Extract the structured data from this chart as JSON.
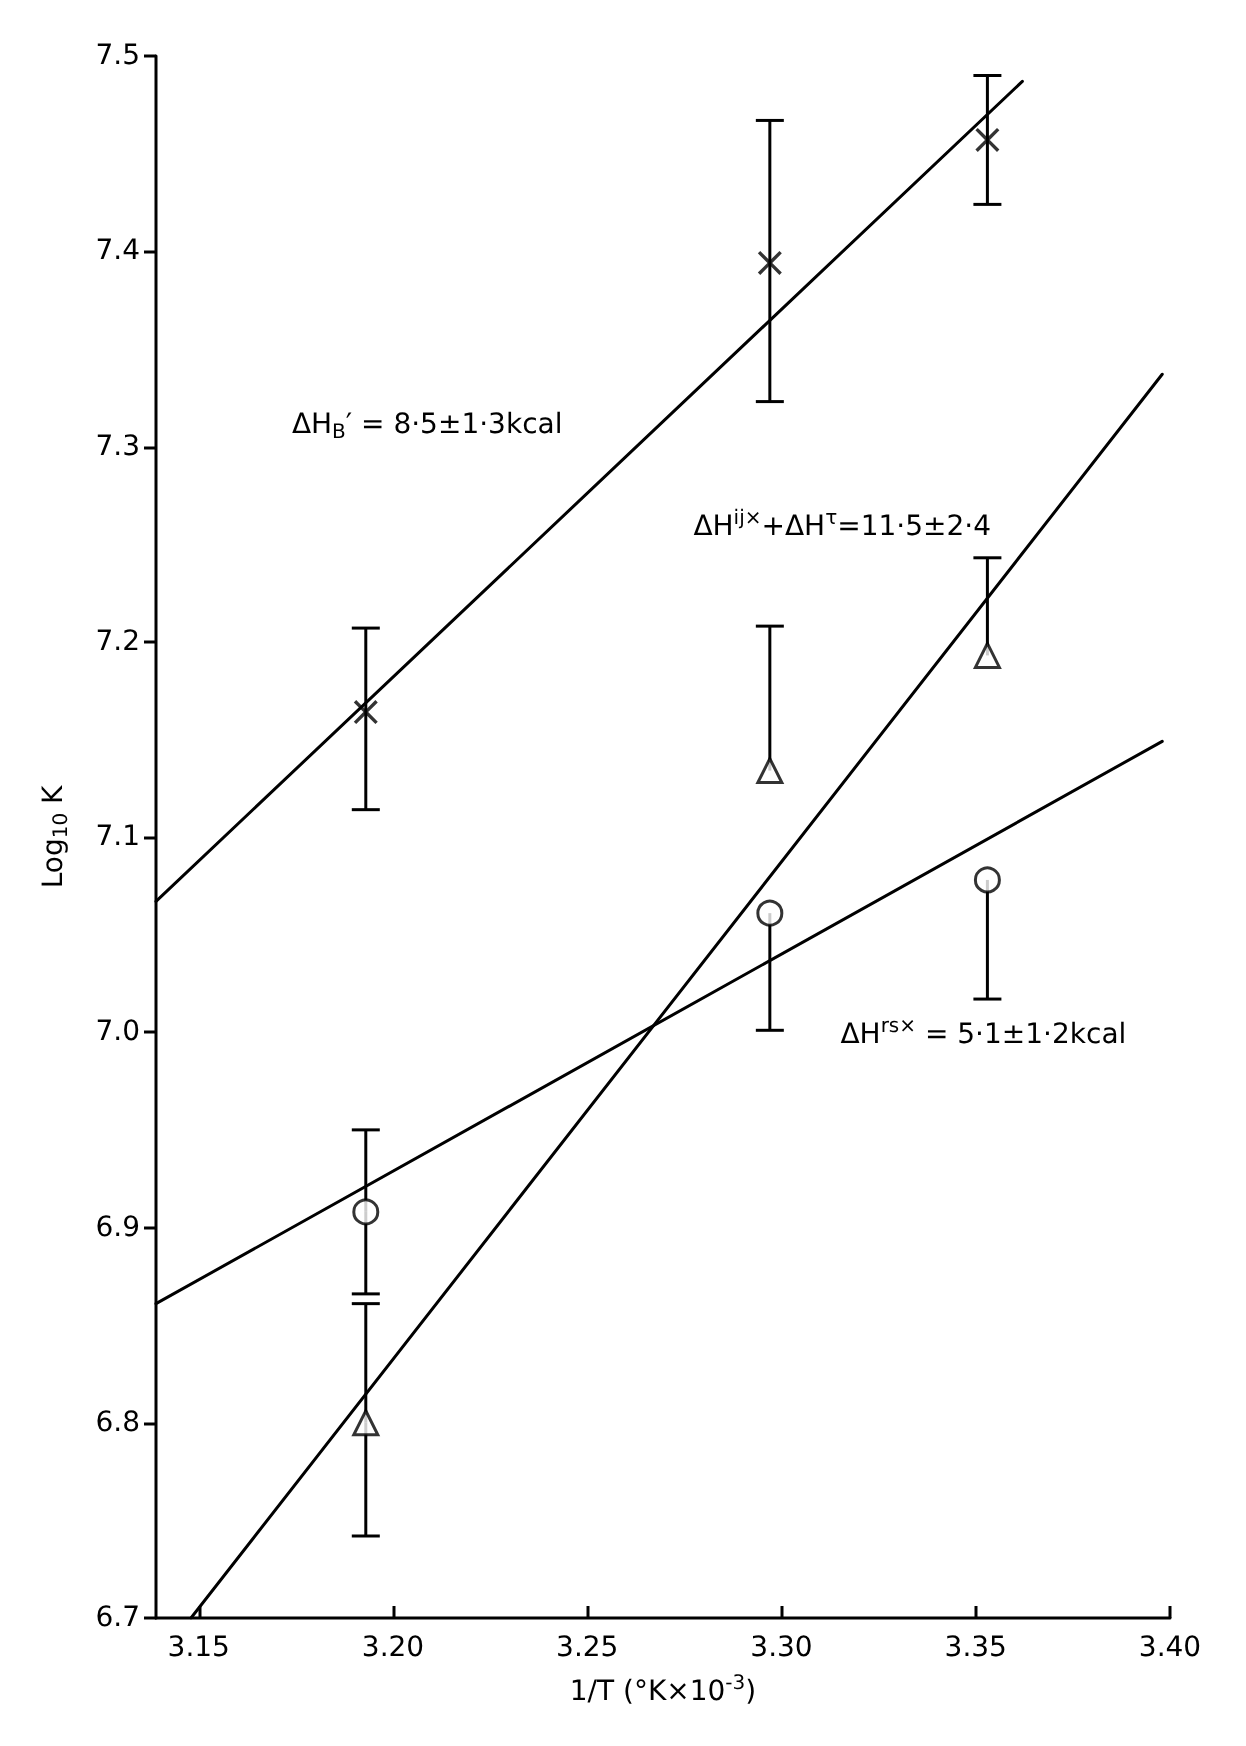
{
  "chart_data": {
    "type": "scatter",
    "xlabel": "1/T (°K×10$^{-3}$)",
    "ylabel": "Log$_{10}$ K",
    "xlim": [
      3.139,
      3.4
    ],
    "xticks": [
      3.15,
      {
        "value": 3.2,
        "label": "3.20"
      },
      3.25,
      {
        "value": 3.3,
        "label": "3.30"
      },
      3.35,
      {
        "value": 3.4,
        "label": "3.40"
      }
    ],
    "ylim": [
      6.7,
      7.5
    ],
    "yticks": [
      6.7,
      6.8,
      6.9,
      {
        "value": 7,
        "label": "7.0"
      },
      7.1,
      7.2,
      7.3,
      7.4,
      7.5
    ],
    "grid": false,
    "series": [
      {
        "marker": "cross",
        "color": "#000000",
        "x": [
          3.193,
          3.297,
          3.353
        ],
        "values": [
          7.164,
          7.394,
          7.457
        ],
        "errors": [
          [
            7.114,
            7.207
          ],
          [
            7.323,
            7.467
          ],
          [
            7.424,
            7.49
          ]
        ]
      },
      {
        "marker": "triangle",
        "color": "#000000",
        "x": [
          3.193,
          3.297,
          3.353
        ],
        "values": [
          6.8,
          7.134,
          7.193
        ],
        "errors": [
          [
            6.742,
            6.861
          ],
          [
            7.134,
            7.208
          ],
          [
            7.193,
            7.243
          ]
        ]
      },
      {
        "marker": "circle",
        "color": "#000000",
        "x": [
          3.193,
          3.297,
          3.353
        ],
        "values": [
          6.908,
          7.061,
          7.078
        ],
        "errors": [
          [
            6.866,
            6.95
          ],
          [
            7.001,
            7.061
          ],
          [
            7.017,
            7.078
          ]
        ]
      },
      {
        "type": "line",
        "marker": "none",
        "line_style": "solid",
        "color": "#000000",
        "x": [
          3.139,
          3.362
        ],
        "values": [
          7.067,
          7.487
        ]
      },
      {
        "type": "line",
        "marker": "none",
        "line_style": "solid",
        "color": "#000000",
        "x": [
          3.148,
          3.398
        ],
        "values": [
          6.7,
          7.337
        ]
      },
      {
        "type": "line",
        "marker": "none",
        "line_style": "solid",
        "color": "#000000",
        "x": [
          3.139,
          3.398
        ],
        "values": [
          6.861,
          7.149
        ]
      }
    ],
    "annotations": [
      "ΔH$_{B}$′ = 8·5±1·3kcal",
      "ΔH$^{ij×}$+ΔH$^{τ}$=11·5±2·4",
      "ΔH$^{rs×}$ = 5·1±1·2kcal"
    ]
  }
}
